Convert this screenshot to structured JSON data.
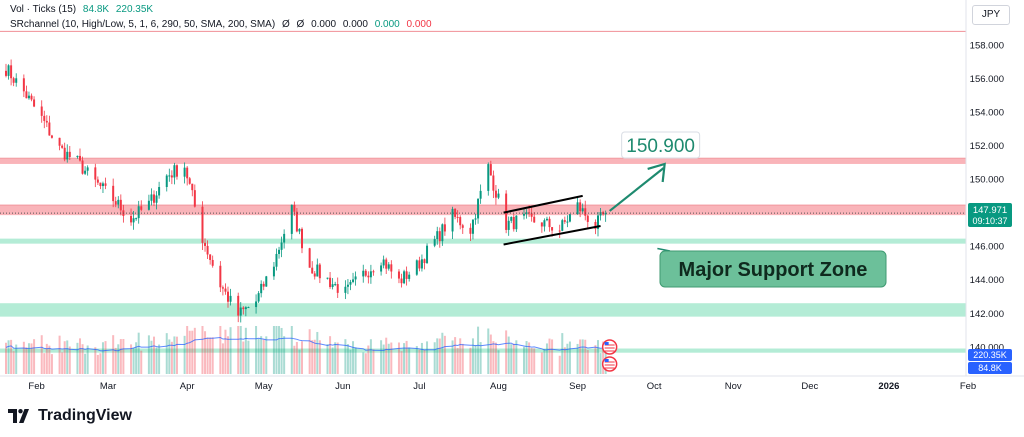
{
  "legend": {
    "volume": {
      "name": "Vol · Ticks (15)",
      "value1": "84.8K",
      "value2": "220.35K"
    },
    "indicator": {
      "name": "SRchannel (10, High/Low, 5, 1, 6, 290, 50, SMA, 200, SMA)",
      "symbol1": "Ø",
      "symbol2": "Ø",
      "v1": "0.000",
      "v2": "0.000",
      "v3": "0.000",
      "v4": "0.000"
    }
  },
  "currency_button": "JPY",
  "footer": {
    "brand": "TradingView",
    "logo_icon": "tradingview-logo-icon"
  },
  "chart_data": {
    "type": "candlestick",
    "x_ticks": [
      "Feb",
      "Mar",
      "Apr",
      "May",
      "Jun",
      "Jul",
      "Aug",
      "Sep",
      "Oct",
      "Nov",
      "Dec",
      "2026",
      "Feb"
    ],
    "y_ticks": [
      "158.000",
      "156.000",
      "154.000",
      "152.000",
      "150.000",
      "148.000",
      "146.000",
      "144.000",
      "142.000",
      "140.000"
    ],
    "ylim": [
      138.5,
      159.6
    ],
    "price_path": [
      {
        "date": "Jan 20",
        "close": 156.6
      },
      {
        "date": "Jan 27",
        "close": 155.2
      },
      {
        "date": "Feb 03",
        "close": 153.6
      },
      {
        "date": "Feb 10",
        "close": 151.8
      },
      {
        "date": "Feb 17",
        "close": 151.0
      },
      {
        "date": "Feb 24",
        "close": 149.8
      },
      {
        "date": "Mar 03",
        "close": 148.8
      },
      {
        "date": "Mar 10",
        "close": 147.6
      },
      {
        "date": "Mar 17",
        "close": 148.5
      },
      {
        "date": "Mar 24",
        "close": 150.2
      },
      {
        "date": "Mar 31",
        "close": 150.8
      },
      {
        "date": "Apr 07",
        "close": 146.5
      },
      {
        "date": "Apr 14",
        "close": 143.7
      },
      {
        "date": "Apr 21",
        "close": 141.9
      },
      {
        "date": "Apr 28",
        "close": 142.7
      },
      {
        "date": "May 05",
        "close": 145.0
      },
      {
        "date": "May 12",
        "close": 148.2
      },
      {
        "date": "May 19",
        "close": 144.8
      },
      {
        "date": "May 26",
        "close": 144.0
      },
      {
        "date": "Jun 02",
        "close": 143.2
      },
      {
        "date": "Jun 09",
        "close": 144.3
      },
      {
        "date": "Jun 16",
        "close": 145.3
      },
      {
        "date": "Jun 23",
        "close": 143.9
      },
      {
        "date": "Jun 30",
        "close": 144.8
      },
      {
        "date": "Jul 07",
        "close": 146.3
      },
      {
        "date": "Jul 14",
        "close": 147.8
      },
      {
        "date": "Jul 21",
        "close": 147.0
      },
      {
        "date": "Jul 28",
        "close": 150.7
      },
      {
        "date": "Aug 04",
        "close": 147.3
      },
      {
        "date": "Aug 11",
        "close": 147.6
      },
      {
        "date": "Aug 18",
        "close": 147.4
      },
      {
        "date": "Aug 25",
        "close": 147.0
      },
      {
        "date": "Sep 01",
        "close": 148.4
      },
      {
        "date": "Sep 08",
        "close": 147.2
      },
      {
        "date": "Sep 12",
        "close": 147.97
      }
    ],
    "resistance_zones": [
      [
        150.9,
        151.25
      ],
      [
        147.85,
        148.45
      ]
    ],
    "support_zones": [
      [
        146.15,
        146.45
      ],
      [
        141.8,
        142.6
      ],
      [
        139.65,
        139.9
      ]
    ],
    "resistance_line": 158.8,
    "current_price": {
      "value": "147.971",
      "time": "09:10:37"
    },
    "volume_labels": {
      "upper": "220.35K",
      "lower": "84.8K"
    },
    "annotations": {
      "target_label": "150.900",
      "target_price": 150.9,
      "zone_label": "Major Support Zone",
      "channel_top": [
        {
          "date": "Aug 03",
          "price": 148.0
        },
        {
          "date": "Sep 03",
          "price": 149.0
        }
      ],
      "channel_bottom": [
        {
          "date": "Aug 03",
          "price": 146.1
        },
        {
          "date": "Sep 10",
          "price": 147.2
        }
      ]
    },
    "colors": {
      "up": "#089981",
      "down": "#f23645",
      "resistance_zone": "#f8a7ad",
      "support_zone": "#a7e9cf",
      "volume_ma": "#2962ff",
      "annotation": "#1e8a6f"
    }
  }
}
